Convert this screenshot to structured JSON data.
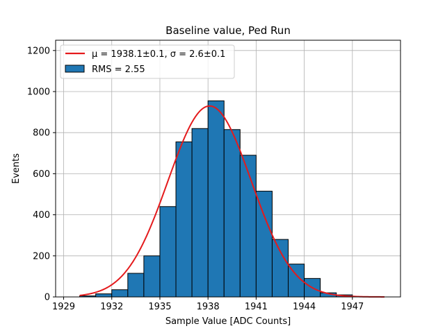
{
  "chart_data": {
    "type": "bar",
    "title": "Baseline value, Ped Run",
    "xlabel": "Sample Value [ADC Counts]",
    "ylabel": "Events",
    "xlim": [
      1928.5,
      1950.0
    ],
    "ylim": [
      0,
      1250
    ],
    "xticks": [
      1929,
      1932,
      1935,
      1938,
      1941,
      1944,
      1947
    ],
    "yticks": [
      0,
      200,
      400,
      600,
      800,
      1000,
      1200
    ],
    "grid": true,
    "legend_position": "top-left",
    "histogram": {
      "name": "RMS = 2.55",
      "color": "#1f77b4",
      "edge_color": "#000000",
      "bin_edges": [
        1930,
        1931,
        1932,
        1933,
        1934,
        1935,
        1936,
        1937,
        1938,
        1939,
        1940,
        1941,
        1942,
        1943,
        1944,
        1945,
        1946,
        1947
      ],
      "counts": [
        5,
        15,
        35,
        115,
        200,
        440,
        755,
        820,
        955,
        815,
        690,
        515,
        280,
        160,
        90,
        20,
        10
      ]
    },
    "fit": {
      "name": "$\\mu = 1938.1 \\pm 0.1$, $\\sigma = 2.6 \\pm 0.1$",
      "color": "#e41a1c",
      "mu": 1938.1,
      "sigma": 2.6,
      "amplitude": 930,
      "x_range": [
        1930,
        1949
      ]
    },
    "legend": {
      "fit_label": "μ = 1938.1±0.1, σ = 2.6±0.1",
      "hist_label": "RMS = 2.55"
    }
  }
}
